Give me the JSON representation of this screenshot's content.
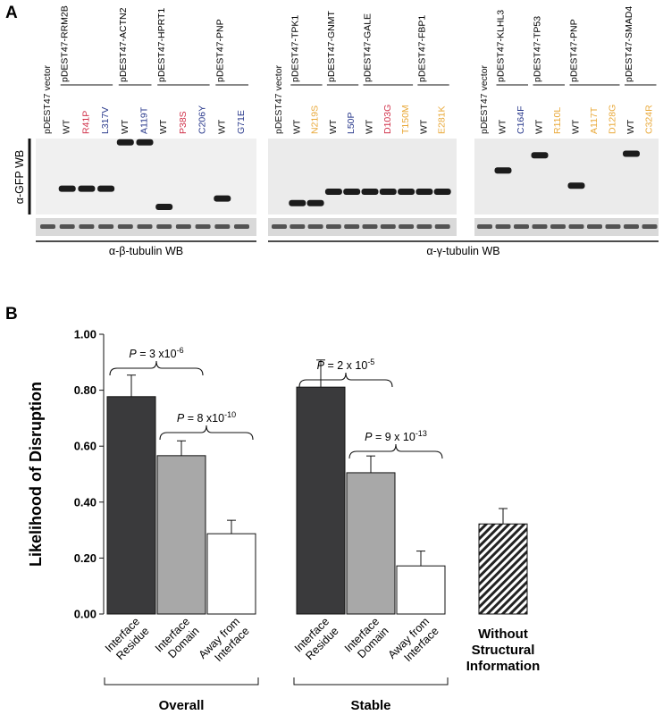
{
  "panel_a": {
    "label": "A",
    "blots": [
      {
        "lanes": [
          {
            "text": "pDEST47 vector",
            "color": "#111111"
          },
          {
            "text": "WT",
            "color": "#111111"
          },
          {
            "text": "R41P",
            "color": "#d0314a"
          },
          {
            "text": "L317V",
            "color": "#2a3a8c"
          },
          {
            "text": "WT",
            "color": "#111111"
          },
          {
            "text": "A119T",
            "color": "#2a3a8c"
          },
          {
            "text": "WT",
            "color": "#111111"
          },
          {
            "text": "P38S",
            "color": "#d0314a"
          },
          {
            "text": "C206Y",
            "color": "#2a3a8c"
          },
          {
            "text": "WT",
            "color": "#111111"
          },
          {
            "text": "G71E",
            "color": "#2a3a8c"
          }
        ],
        "constructs": [
          {
            "text": "pDEST47-RRM2B",
            "from": 1,
            "to": 3
          },
          {
            "text": "pDEST47-ACTN2",
            "from": 4,
            "to": 5
          },
          {
            "text": "pDEST47-HPRT1",
            "from": 6,
            "to": 8
          },
          {
            "text": "pDEST47-PNP",
            "from": 9,
            "to": 10
          }
        ],
        "bands_upper": [
          {
            "lane": 2,
            "level": 0.66
          },
          {
            "lane": 3,
            "level": 0.66
          },
          {
            "lane": 4,
            "level": 0.66
          },
          {
            "lane": 5,
            "level": 0.05
          },
          {
            "lane": 6,
            "level": 0.05
          },
          {
            "lane": 7,
            "level": 0.9
          },
          {
            "lane": 10,
            "level": 0.79
          }
        ],
        "loading_label": "α-β-tubulin WB"
      },
      {
        "lanes": [
          {
            "text": "pDEST47 vector",
            "color": "#111111"
          },
          {
            "text": "WT",
            "color": "#111111"
          },
          {
            "text": "N219S",
            "color": "#e9a93a"
          },
          {
            "text": "WT",
            "color": "#111111"
          },
          {
            "text": "L50P",
            "color": "#2a3a8c"
          },
          {
            "text": "WT",
            "color": "#111111"
          },
          {
            "text": "D103G",
            "color": "#d0314a"
          },
          {
            "text": "T150M",
            "color": "#e9a93a"
          },
          {
            "text": "WT",
            "color": "#111111"
          },
          {
            "text": "E281K",
            "color": "#e9a93a"
          }
        ],
        "constructs": [
          {
            "text": "pDEST47-TPK1",
            "from": 1,
            "to": 2
          },
          {
            "text": "pDEST47-GNMT",
            "from": 3,
            "to": 4
          },
          {
            "text": "pDEST47-GALE",
            "from": 5,
            "to": 7
          },
          {
            "text": "pDEST47-FBP1",
            "from": 8,
            "to": 9
          }
        ],
        "bands_upper": [
          {
            "lane": 2,
            "level": 0.85
          },
          {
            "lane": 3,
            "level": 0.85
          },
          {
            "lane": 4,
            "level": 0.7
          },
          {
            "lane": 5,
            "level": 0.7
          },
          {
            "lane": 6,
            "level": 0.7
          },
          {
            "lane": 7,
            "level": 0.7
          },
          {
            "lane": 8,
            "level": 0.7
          },
          {
            "lane": 9,
            "level": 0.7
          },
          {
            "lane": 10,
            "level": 0.7
          }
        ],
        "loading_label": "α-γ-tubulin WB"
      },
      {
        "lanes": [
          {
            "text": "pDEST47 vector",
            "color": "#111111"
          },
          {
            "text": "WT",
            "color": "#111111"
          },
          {
            "text": "C164F",
            "color": "#2a3a8c"
          },
          {
            "text": "WT",
            "color": "#111111"
          },
          {
            "text": "R110L",
            "color": "#e9a93a"
          },
          {
            "text": "WT",
            "color": "#111111"
          },
          {
            "text": "A117T",
            "color": "#e9a93a"
          },
          {
            "text": "D128G",
            "color": "#e9a93a"
          },
          {
            "text": "WT",
            "color": "#111111"
          },
          {
            "text": "C324R",
            "color": "#e9a93a"
          }
        ],
        "constructs": [
          {
            "text": "pDEST47-KLHL3",
            "from": 1,
            "to": 2
          },
          {
            "text": "pDEST47-TP53",
            "from": 3,
            "to": 4
          },
          {
            "text": "pDEST47-PNP",
            "from": 5,
            "to": 7
          },
          {
            "text": "pDEST47-SMAD4",
            "from": 8,
            "to": 9
          }
        ],
        "bands_upper": [
          {
            "lane": 2,
            "level": 0.42
          },
          {
            "lane": 4,
            "level": 0.22
          },
          {
            "lane": 6,
            "level": 0.62
          },
          {
            "lane": 9,
            "level": 0.2
          }
        ],
        "loading_label": ""
      }
    ],
    "gfp_label": "α-GFP WB"
  },
  "panel_b": {
    "label": "B",
    "chart_data": {
      "type": "bar",
      "ylabel": "Likelihood of Disruption",
      "ylim": [
        0,
        1.0
      ],
      "yticks": [
        "0.00",
        "0.20",
        "0.40",
        "0.60",
        "0.80",
        "1.00"
      ],
      "categories": [
        "Interface Residue",
        "Interface Domain",
        "Away from Interface",
        "Interface Residue",
        "Interface Domain",
        "Away from Interface",
        "Without Structural Information"
      ],
      "values": [
        0.777,
        0.566,
        0.287,
        0.811,
        0.505,
        0.172,
        0.322
      ],
      "errors": [
        0.077,
        0.053,
        0.048,
        0.097,
        0.06,
        0.053,
        0.055
      ],
      "groups": [
        {
          "name": "Overall",
          "from": 0,
          "to": 2
        },
        {
          "name": "Stable",
          "from": 3,
          "to": 5
        }
      ],
      "comparisons": [
        {
          "from": 0,
          "to": 1,
          "label": "P = 3 x10-6",
          "p": "P",
          "eq": " = 3 x10",
          "exp": "-6"
        },
        {
          "from": 1,
          "to": 2,
          "label": "P = 8 x10-10",
          "p": "P",
          "eq": " = 8 x10",
          "exp": "-10"
        },
        {
          "from": 3,
          "to": 4,
          "label": "P = 2 x 10-5",
          "p": "P",
          "eq": " = 2 x 10",
          "exp": "-5"
        },
        {
          "from": 4,
          "to": 5,
          "label": "P = 9 x 10-13",
          "p": "P",
          "eq": " = 9 x 10",
          "exp": "-13"
        }
      ],
      "colors": {
        "Interface Residue": "#3a3a3c",
        "Interface Domain": "#a8a8a8",
        "Away from Interface": "#ffffff",
        "Without Structural Information": "hatched"
      }
    }
  }
}
